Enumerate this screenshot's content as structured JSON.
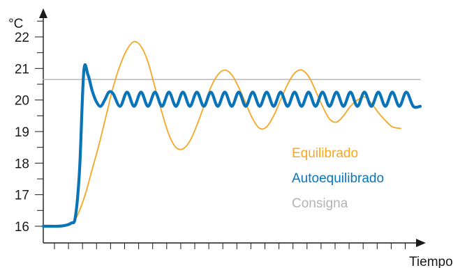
{
  "chart_data": {
    "type": "line",
    "ylabel": "°C",
    "xlabel": "Tiempo",
    "ylim": [
      16,
      22
    ],
    "y_ticks": [
      "16",
      "17",
      "18",
      "19",
      "20",
      "21",
      "22"
    ],
    "grid": false,
    "legend_placement": "lower-right",
    "series": [
      {
        "name": "Equilibrado",
        "color": "#f6a623",
        "x": [
          0,
          1.5,
          2.1,
          2.5,
          3,
          3.5,
          4,
          4.5,
          5,
          5.5,
          6,
          6.5,
          7,
          7.5,
          8,
          8.5,
          9,
          9.5,
          10,
          10.5,
          11,
          11.5,
          12,
          12.5,
          13,
          13.5,
          14,
          14.5,
          15,
          15.5,
          16,
          16.5,
          17,
          17.5,
          18,
          18.5,
          19,
          19.5,
          20,
          20.5,
          21,
          21.5,
          22,
          22.5,
          23,
          23.5,
          24,
          24.5,
          25,
          25.6
        ],
        "values": [
          16,
          16,
          16.1,
          16.4,
          17.0,
          17.8,
          18.6,
          19.5,
          20.4,
          21.1,
          21.6,
          21.85,
          21.7,
          21.2,
          20.4,
          19.6,
          18.9,
          18.5,
          18.45,
          18.7,
          19.2,
          19.8,
          20.4,
          20.8,
          20.95,
          20.8,
          20.4,
          19.9,
          19.4,
          19.1,
          19.15,
          19.5,
          20.0,
          20.5,
          20.85,
          20.95,
          20.75,
          20.3,
          19.8,
          19.4,
          19.3,
          19.5,
          19.8,
          20.0,
          20.1,
          19.9,
          19.6,
          19.35,
          19.15,
          19.1
        ]
      },
      {
        "name": "Autoequilibrado",
        "color": "#0a74b9",
        "x": [
          0,
          0.5,
          1,
          1.5,
          2,
          2.3,
          2.6,
          2.9,
          3.2,
          3.5,
          3.8,
          4.1,
          4.4,
          4.7,
          5,
          5.5,
          6,
          6.5,
          7,
          7.5,
          8,
          8.5,
          9,
          9.5,
          10,
          10.5,
          11,
          11.5,
          12,
          12.5,
          13,
          13.5,
          14,
          14.5,
          15,
          15.5,
          16,
          16.5,
          17,
          17.5,
          18,
          18.5,
          19,
          19.5,
          20,
          20.5,
          21,
          21.5,
          22,
          22.5,
          23,
          23.5,
          24,
          24.5,
          25,
          25.5,
          26,
          26.5,
          27
        ],
        "values": [
          16,
          16,
          16,
          16.02,
          16.1,
          16.3,
          17.8,
          20.9,
          20.8,
          20.3,
          19.95,
          19.8,
          20.0,
          20.25,
          20.2,
          19.8,
          20.25,
          19.8,
          20.25,
          19.8,
          20.25,
          19.8,
          20.25,
          19.8,
          20.25,
          19.8,
          20.25,
          19.8,
          20.25,
          19.8,
          20.25,
          19.8,
          20.25,
          19.8,
          20.25,
          19.8,
          20.25,
          19.8,
          20.25,
          19.8,
          20.25,
          19.8,
          20.25,
          19.8,
          20.25,
          19.8,
          20.25,
          19.8,
          20.25,
          19.8,
          20.25,
          19.8,
          20.25,
          19.8,
          20.25,
          19.8,
          20.25,
          19.8,
          19.8
        ]
      },
      {
        "name": "Consigna",
        "color": "#b3b3b3",
        "x": [
          0,
          27
        ],
        "values": [
          20.65,
          20.65
        ]
      }
    ]
  }
}
